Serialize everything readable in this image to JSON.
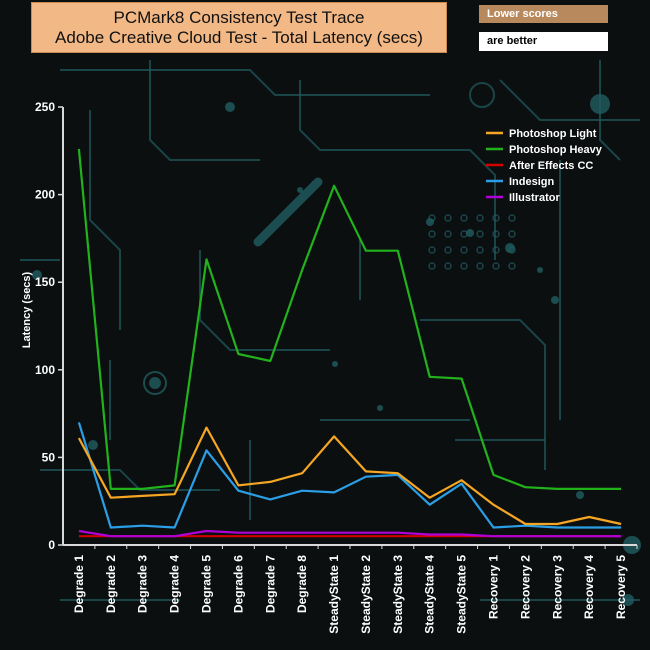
{
  "header": {
    "title_line1": "PCMark8 Consistency Test Trace",
    "title_line2": "Adobe Creative Cloud Test -  Total Latency (secs)"
  },
  "notes": {
    "line1": "Lower scores",
    "line2": "are better"
  },
  "colors": {
    "background": "#0c0f10",
    "axis": "#ffffff",
    "title_box": "#f2b885",
    "decor": "#1f5d62"
  },
  "chart_data": {
    "type": "line",
    "title": "PCMark8 Consistency Test Trace\nAdobe Creative Cloud Test -  Total Latency (secs)",
    "xlabel": "",
    "ylabel": "Latency (secs)",
    "ylim": [
      0,
      250
    ],
    "yticks": [
      0,
      50,
      100,
      150,
      200,
      250
    ],
    "grid": false,
    "legend_position": "top-right",
    "categories": [
      "Degrade 1",
      "Degrade 2",
      "Degrade 3",
      "Degrade 4",
      "Degrade 5",
      "Degrade 6",
      "Degrade 7",
      "Degrade 8",
      "SteadyState 1",
      "SteadyState 2",
      "SteadyState 3",
      "SteadyState 4",
      "SteadyState 5",
      "Recovery 1",
      "Recovery 2",
      "Recovery 3",
      "Recovery 4",
      "Recovery 5"
    ],
    "series": [
      {
        "name": "Photoshop Light",
        "color": "#f5a623",
        "values": [
          61,
          27,
          28,
          29,
          67,
          34,
          36,
          41,
          62,
          42,
          41,
          27,
          37,
          23,
          12,
          12,
          16,
          12
        ]
      },
      {
        "name": " Photoshop Heavy",
        "color": "#22b21c",
        "values": [
          226,
          32,
          32,
          34,
          163,
          109,
          105,
          157,
          205,
          168,
          168,
          96,
          95,
          40,
          33,
          32,
          32,
          32
        ]
      },
      {
        "name": "After Effects CC",
        "color": "#d40000",
        "values": [
          5,
          5,
          5,
          5,
          5,
          5,
          5,
          5,
          5,
          5,
          5,
          5,
          5,
          5,
          5,
          5,
          5,
          5
        ]
      },
      {
        "name": "Indesign",
        "color": "#2b9fe6",
        "values": [
          70,
          10,
          11,
          10,
          54,
          31,
          26,
          31,
          30,
          39,
          40,
          23,
          35,
          10,
          11,
          10,
          10,
          10
        ]
      },
      {
        "name": "Illustrator",
        "color": "#b000d8",
        "values": [
          8,
          5,
          5,
          5,
          8,
          7,
          7,
          7,
          7,
          7,
          7,
          6,
          6,
          5,
          5,
          5,
          5,
          5
        ]
      }
    ]
  }
}
